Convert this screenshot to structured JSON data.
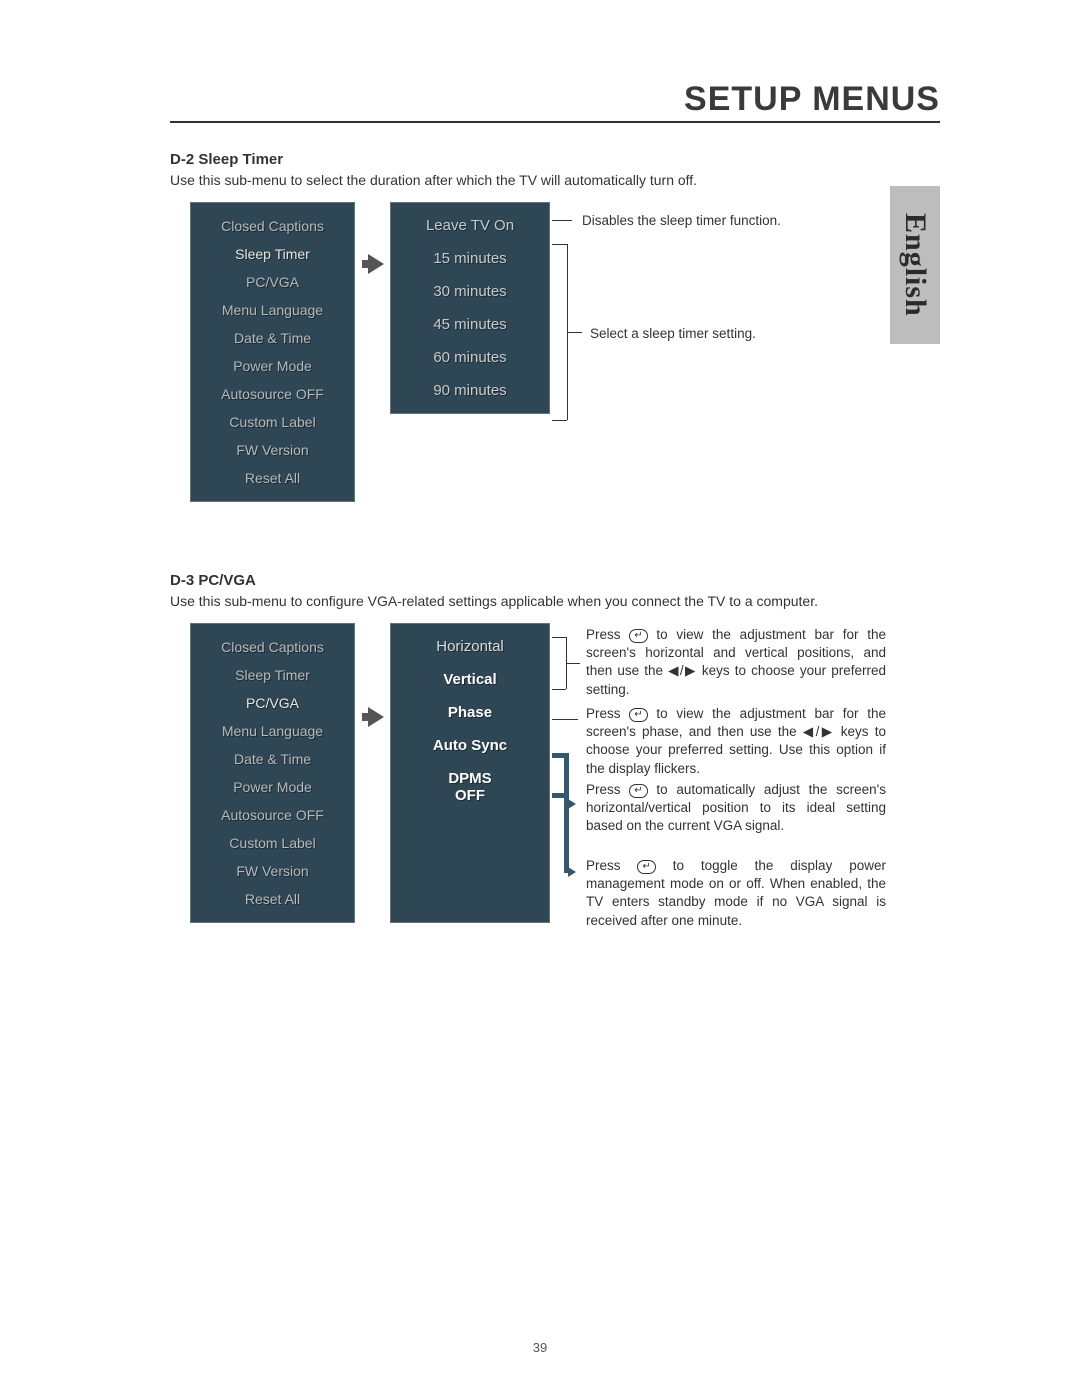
{
  "page_title": "SETUP MENUS",
  "language_tab": "English",
  "page_number": "39",
  "colors": {
    "panel_bg": "#2f4654",
    "panel_border": "#64727a",
    "item_dim": "#b5babb",
    "item_bright": "#e8e6de",
    "callout_arrow": "#37586c",
    "lang_tab_bg": "#bdbdbd"
  },
  "section_d2": {
    "heading": "D-2  Sleep Timer",
    "desc": "Use this sub-menu to select the duration after which the TV will automatically turn off.",
    "menu_items": [
      "Closed Captions",
      "Sleep Timer",
      "PC/VGA",
      "Menu Language",
      "Date & Time",
      "Power Mode",
      "Autosource OFF",
      "Custom Label",
      "FW Version",
      "Reset All"
    ],
    "highlight_index": 1,
    "sub_items": [
      "Leave TV On",
      "15  minutes",
      "30  minutes",
      "45  minutes",
      "60  minutes",
      "90  minutes"
    ],
    "callout_top": "Disables the sleep timer function.",
    "callout_group": "Select a sleep timer setting."
  },
  "section_d3": {
    "heading": "D-3  PC/VGA",
    "desc": "Use this sub-menu to configure VGA-related settings applicable when you connect the TV to a computer.",
    "menu_items": [
      "Closed Captions",
      "Sleep Timer",
      "PC/VGA",
      "Menu Language",
      "Date & Time",
      "Power Mode",
      "Autosource OFF",
      "Custom Label",
      "FW Version",
      "Reset All"
    ],
    "highlight_index": 2,
    "sub_items": [
      "Horizontal",
      "Vertical",
      "Phase",
      "Auto Sync",
      "DPMS OFF"
    ],
    "callouts": {
      "hv": "Press ↵ to view the adjustment bar for the screen's horizontal and vertical positions, and then use the ◀/▶ keys to choose your preferred setting.",
      "phase": "Press ↵ to view the adjustment bar for the screen's phase, and then use the ◀/▶ keys to choose your preferred setting. Use this option if the display flickers.",
      "autosync": "Press ↵ to automatically adjust the screen's horizontal/vertical position to its ideal setting based on the current VGA signal.",
      "dpms": "Press ↵ to toggle the display power management mode on or off. When enabled, the TV enters standby mode if no VGA signal is received after one minute."
    }
  }
}
